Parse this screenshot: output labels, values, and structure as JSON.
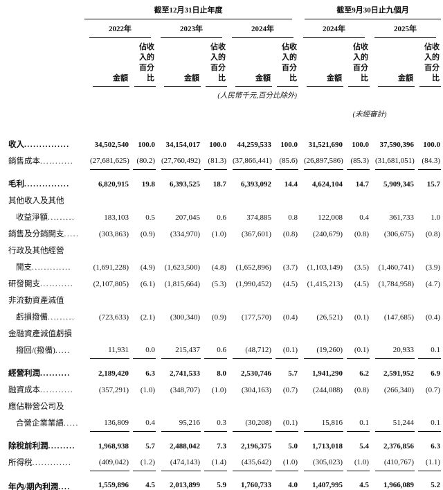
{
  "table": {
    "header": {
      "period_annual": "截至12月31日止年度",
      "period_interim": "截至9月30日止九個月",
      "years": [
        "2022年",
        "2023年",
        "2024年",
        "2024年",
        "2025年"
      ],
      "amount_label": "金額",
      "pct_label_line1": "佔收入的",
      "pct_label_line2": "百分比",
      "note_currency": "(人民幣千元,百分比除外)",
      "note_unaudited": "(未經審計)"
    },
    "rows": [
      {
        "label": "收入",
        "leader": "...............",
        "bold": true,
        "underline": "none",
        "values": [
          "34,502,540",
          "100.0",
          "34,154,017",
          "100.0",
          "44,259,533",
          "100.0",
          "31,521,690",
          "100.0",
          "37,590,396",
          "100.0"
        ]
      },
      {
        "label": "銷售成本",
        "leader": "...........",
        "bold": false,
        "underline": "single",
        "values": [
          "(27,681,625)",
          "(80.2)",
          "(27,760,492)",
          "(81.3)",
          "(37,866,441)",
          "(85.6)",
          "(26,897,586)",
          "(85.3)",
          "(31,681,051)",
          "(84.3)"
        ]
      },
      {
        "label": "毛利",
        "leader": "...............",
        "bold": true,
        "underline": "none",
        "values": [
          "6,820,915",
          "19.8",
          "6,393,525",
          "18.7",
          "6,393,092",
          "14.4",
          "4,624,104",
          "14.7",
          "5,909,345",
          "15.7"
        ]
      },
      {
        "label_pre": [
          "其他收入及其他"
        ],
        "label": "收益淨額",
        "leader": ".........",
        "indent": true,
        "bold": false,
        "underline": "none",
        "values": [
          "183,103",
          "0.5",
          "207,045",
          "0.6",
          "374,885",
          "0.8",
          "122,008",
          "0.4",
          "361,733",
          "1.0"
        ]
      },
      {
        "label": "銷售及分銷開支",
        "leader": ".....",
        "bold": false,
        "underline": "none",
        "values": [
          "(303,863)",
          "(0.9)",
          "(334,970)",
          "(1.0)",
          "(367,601)",
          "(0.8)",
          "(240,679)",
          "(0.8)",
          "(306,675)",
          "(0.8)"
        ]
      },
      {
        "label_pre": [
          "行政及其他經營"
        ],
        "label": "開支",
        "leader": ".............",
        "indent": true,
        "bold": false,
        "underline": "none",
        "values": [
          "(1,691,228)",
          "(4.9)",
          "(1,623,500)",
          "(4.8)",
          "(1,652,896)",
          "(3.7)",
          "(1,103,149)",
          "(3.5)",
          "(1,460,741)",
          "(3.9)"
        ]
      },
      {
        "label": "研發開支",
        "leader": "...........",
        "bold": false,
        "underline": "none",
        "values": [
          "(2,107,805)",
          "(6.1)",
          "(1,815,664)",
          "(5.3)",
          "(1,990,452)",
          "(4.5)",
          "(1,415,213)",
          "(4.5)",
          "(1,784,958)",
          "(4.7)"
        ]
      },
      {
        "label_pre": [
          "非流動資產減值"
        ],
        "label": "虧損撥備",
        "leader": ".........",
        "indent": true,
        "bold": false,
        "underline": "none",
        "values": [
          "(723,633)",
          "(2.1)",
          "(300,340)",
          "(0.9)",
          "(177,570)",
          "(0.4)",
          "(26,521)",
          "(0.1)",
          "(147,685)",
          "(0.4)"
        ]
      },
      {
        "label_pre": [
          "金融資產減值虧損"
        ],
        "label": "撥回/(撥備)",
        "leader": ".....",
        "indent": true,
        "bold": false,
        "underline": "single",
        "values": [
          "11,931",
          "0.0",
          "215,437",
          "0.6",
          "(48,712)",
          "(0.1)",
          "(19,260)",
          "(0.1)",
          "20,933",
          "0.1"
        ]
      },
      {
        "label": "經營利潤",
        "leader": "..........",
        "bold": true,
        "underline": "none",
        "values": [
          "2,189,420",
          "6.3",
          "2,741,533",
          "8.0",
          "2,530,746",
          "5.7",
          "1,941,290",
          "6.2",
          "2,591,952",
          "6.9"
        ]
      },
      {
        "label": "融資成本",
        "leader": "...........",
        "bold": false,
        "underline": "none",
        "values": [
          "(357,291)",
          "(1.0)",
          "(348,707)",
          "(1.0)",
          "(304,163)",
          "(0.7)",
          "(244,088)",
          "(0.8)",
          "(266,340)",
          "(0.7)"
        ]
      },
      {
        "label_pre": [
          "應佔聯營公司及"
        ],
        "label": "合營企業業績",
        "leader": ".....",
        "indent": true,
        "bold": false,
        "underline": "single",
        "values": [
          "136,809",
          "0.4",
          "95,216",
          "0.3",
          "(30,208)",
          "(0.1)",
          "15,816",
          "0.1",
          "51,244",
          "0.1"
        ]
      },
      {
        "label": "除稅前利潤",
        "leader": ".........",
        "bold": true,
        "underline": "none",
        "values": [
          "1,968,938",
          "5.7",
          "2,488,042",
          "7.3",
          "2,196,375",
          "5.0",
          "1,713,018",
          "5.4",
          "2,376,856",
          "6.3"
        ]
      },
      {
        "label": "所得稅",
        "leader": ".............",
        "bold": false,
        "underline": "single",
        "values": [
          "(409,042)",
          "(1.2)",
          "(474,143)",
          "(1.4)",
          "(435,642)",
          "(1.0)",
          "(305,023)",
          "(1.0)",
          "(410,767)",
          "(1.1)"
        ]
      },
      {
        "label": "年內/期內利潤",
        "leader": "....",
        "bold": true,
        "underline": "double",
        "values": [
          "1,559,896",
          "4.5",
          "2,013,899",
          "5.9",
          "1,760,733",
          "4.0",
          "1,407,995",
          "4.5",
          "1,966,089",
          "5.2"
        ]
      }
    ]
  }
}
